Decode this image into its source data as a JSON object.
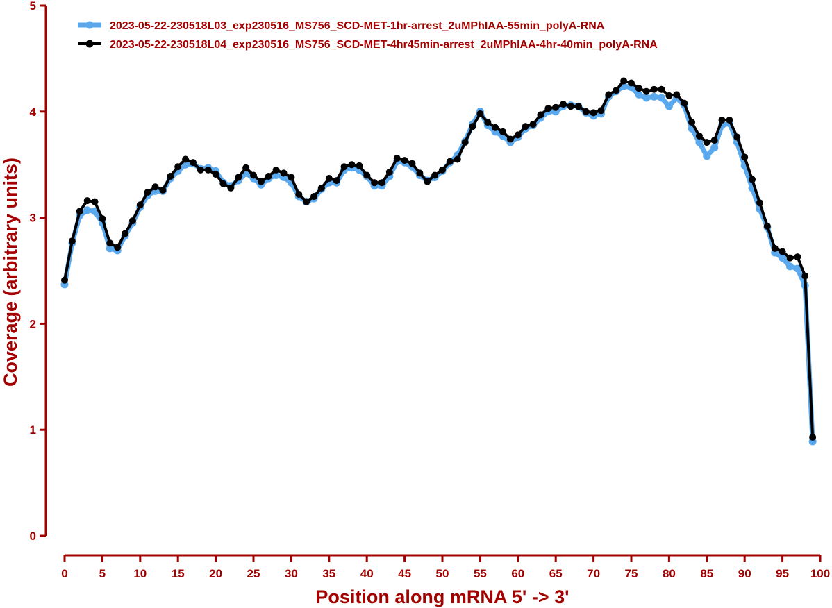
{
  "chart_data": {
    "type": "line",
    "xlabel": "Position along mRNA 5' -> 3'",
    "ylabel": "Coverage (arbitrary units)",
    "xlim": [
      0,
      100
    ],
    "ylim": [
      0,
      5
    ],
    "xticks": [
      0,
      5,
      10,
      15,
      20,
      25,
      30,
      35,
      40,
      45,
      50,
      55,
      60,
      65,
      70,
      75,
      80,
      85,
      90,
      95,
      100
    ],
    "yticks": [
      0,
      1,
      2,
      3,
      4,
      5
    ],
    "grid": false,
    "legend_position": "top-left",
    "axis_color": "#a30000",
    "series": [
      {
        "name": "2023-05-22-230518L03_exp230516_MS756_SCD-MET-1hr-arrest_2uMPhIAA-55min_polyA-RNA",
        "color": "#5aa9ee",
        "x": [
          0,
          1,
          2,
          3,
          4,
          5,
          6,
          7,
          8,
          9,
          10,
          11,
          12,
          13,
          14,
          15,
          16,
          17,
          18,
          19,
          20,
          21,
          22,
          23,
          24,
          25,
          26,
          27,
          28,
          29,
          30,
          31,
          32,
          33,
          34,
          35,
          36,
          37,
          38,
          39,
          40,
          41,
          42,
          43,
          44,
          45,
          46,
          47,
          48,
          49,
          50,
          51,
          52,
          53,
          54,
          55,
          56,
          57,
          58,
          59,
          60,
          61,
          62,
          63,
          64,
          65,
          66,
          67,
          68,
          69,
          70,
          71,
          72,
          73,
          74,
          75,
          76,
          77,
          78,
          79,
          80,
          81,
          82,
          83,
          84,
          85,
          86,
          87,
          88,
          89,
          90,
          91,
          92,
          93,
          94,
          95,
          96,
          97,
          98,
          99
        ],
        "values": [
          2.37,
          2.76,
          3.02,
          3.07,
          3.06,
          2.95,
          2.71,
          2.69,
          2.83,
          2.95,
          3.1,
          3.21,
          3.25,
          3.25,
          3.37,
          3.44,
          3.5,
          3.51,
          3.46,
          3.47,
          3.44,
          3.33,
          3.3,
          3.35,
          3.42,
          3.37,
          3.31,
          3.37,
          3.4,
          3.38,
          3.33,
          3.2,
          3.15,
          3.18,
          3.27,
          3.33,
          3.33,
          3.45,
          3.47,
          3.45,
          3.39,
          3.3,
          3.3,
          3.39,
          3.53,
          3.52,
          3.48,
          3.4,
          3.35,
          3.38,
          3.44,
          3.52,
          3.59,
          3.72,
          3.88,
          4.0,
          3.87,
          3.81,
          3.77,
          3.71,
          3.76,
          3.84,
          3.87,
          3.94,
          4.0,
          4.0,
          4.05,
          4.06,
          4.05,
          3.99,
          3.96,
          3.98,
          4.14,
          4.19,
          4.24,
          4.23,
          4.16,
          4.13,
          4.14,
          4.13,
          4.05,
          4.13,
          4.06,
          3.84,
          3.71,
          3.58,
          3.66,
          3.87,
          3.89,
          3.71,
          3.49,
          3.28,
          3.08,
          2.91,
          2.67,
          2.62,
          2.54,
          2.52,
          2.36,
          0.89
        ]
      },
      {
        "name": "2023-05-22-230518L04_exp230516_MS756_SCD-MET-4hr45min-arrest_2uMPhIAA-4hr-40min_polyA-RNA",
        "color": "#000000",
        "x": [
          0,
          1,
          2,
          3,
          4,
          5,
          6,
          7,
          8,
          9,
          10,
          11,
          12,
          13,
          14,
          15,
          16,
          17,
          18,
          19,
          20,
          21,
          22,
          23,
          24,
          25,
          26,
          27,
          28,
          29,
          30,
          31,
          32,
          33,
          34,
          35,
          36,
          37,
          38,
          39,
          40,
          41,
          42,
          43,
          44,
          45,
          46,
          47,
          48,
          49,
          50,
          51,
          52,
          53,
          54,
          55,
          56,
          57,
          58,
          59,
          60,
          61,
          62,
          63,
          64,
          65,
          66,
          67,
          68,
          69,
          70,
          71,
          72,
          73,
          74,
          75,
          76,
          77,
          78,
          79,
          80,
          81,
          82,
          83,
          84,
          85,
          86,
          87,
          88,
          89,
          90,
          91,
          92,
          93,
          94,
          95,
          96,
          97,
          98,
          99
        ],
        "values": [
          2.41,
          2.78,
          3.06,
          3.16,
          3.15,
          2.99,
          2.76,
          2.72,
          2.85,
          2.97,
          3.12,
          3.24,
          3.29,
          3.26,
          3.39,
          3.48,
          3.55,
          3.52,
          3.45,
          3.45,
          3.41,
          3.32,
          3.28,
          3.38,
          3.47,
          3.4,
          3.34,
          3.39,
          3.45,
          3.42,
          3.38,
          3.22,
          3.15,
          3.2,
          3.28,
          3.37,
          3.35,
          3.48,
          3.5,
          3.49,
          3.4,
          3.33,
          3.33,
          3.43,
          3.56,
          3.54,
          3.51,
          3.42,
          3.34,
          3.4,
          3.45,
          3.53,
          3.55,
          3.71,
          3.86,
          3.98,
          3.9,
          3.85,
          3.81,
          3.74,
          3.78,
          3.86,
          3.88,
          3.97,
          4.03,
          4.04,
          4.07,
          4.05,
          4.05,
          4.0,
          3.99,
          4.01,
          4.16,
          4.2,
          4.29,
          4.27,
          4.22,
          4.19,
          4.21,
          4.21,
          4.15,
          4.16,
          4.08,
          3.9,
          3.77,
          3.71,
          3.73,
          3.92,
          3.92,
          3.76,
          3.57,
          3.36,
          3.14,
          2.92,
          2.71,
          2.68,
          2.62,
          2.63,
          2.45,
          0.93
        ]
      }
    ]
  }
}
